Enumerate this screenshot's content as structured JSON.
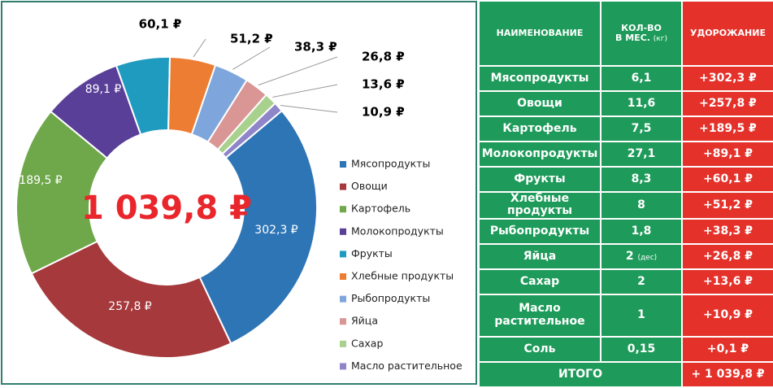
{
  "chart_data": {
    "type": "donut",
    "center_label": "1 039,8 ₽",
    "categories": [
      "Мясопродукты",
      "Овощи",
      "Картофель",
      "Молокопродукты",
      "Фрукты",
      "Хлебные продукты",
      "Рыбопродукты",
      "Яйца",
      "Сахар",
      "Масло растительное"
    ],
    "values": [
      302.3,
      257.8,
      189.5,
      89.1,
      60.1,
      51.2,
      38.3,
      26.8,
      13.6,
      10.9
    ],
    "value_labels": [
      "302,3 ₽",
      "257,8 ₽",
      "189,5 ₽",
      "89,1 ₽",
      "60,1 ₽",
      "51,2 ₽",
      "38,3 ₽",
      "26,8 ₽",
      "13,6 ₽",
      "10,9 ₽"
    ],
    "colors": [
      "#2e75b6",
      "#a5393c",
      "#6fa84a",
      "#5a3f98",
      "#1f9bbf",
      "#ec7d32",
      "#7fa6dc",
      "#d99694",
      "#a9d18e",
      "#8e86c9"
    ],
    "legend": "right"
  },
  "table": {
    "headers": [
      [
        "НАИМЕНОВАНИЕ"
      ],
      [
        "КОЛ-ВО",
        "В МЕС.",
        "(кг)"
      ],
      [
        "УДОРОЖАНИЕ"
      ]
    ],
    "rows": [
      {
        "name": "Мясопродукты",
        "qty": "6,1",
        "increase": "+302,3 ₽"
      },
      {
        "name": "Овощи",
        "qty": "11,6",
        "increase": "+257,8 ₽"
      },
      {
        "name": "Картофель",
        "qty": "7,5",
        "increase": "+189,5 ₽"
      },
      {
        "name": "Молокопродукты",
        "qty": "27,1",
        "increase": "+89,1 ₽"
      },
      {
        "name": "Фрукты",
        "qty": "8,3",
        "increase": "+60,1 ₽"
      },
      {
        "name": "Хлебные продукты",
        "qty": "8",
        "increase": "+51,2 ₽"
      },
      {
        "name": "Рыбопродукты",
        "qty": "1,8",
        "increase": "+38,3 ₽"
      },
      {
        "name": "Яйца",
        "qty": "2",
        "unit": "(дес)",
        "increase": "+26,8 ₽"
      },
      {
        "name": "Сахар",
        "qty": "2",
        "increase": "+13,6 ₽"
      },
      {
        "name": "Масло растительное",
        "qty": "1",
        "increase": "+10,9 ₽"
      },
      {
        "name": "Соль",
        "qty": "0,15",
        "increase": "+0,1 ₽"
      }
    ],
    "total": {
      "name": "ИТОГО",
      "increase": "+ 1 039,8 ₽"
    }
  }
}
